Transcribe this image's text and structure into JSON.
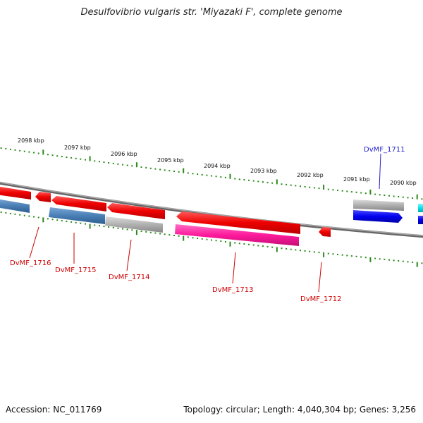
{
  "title": "Desulfovibrio vulgaris str. 'Miyazaki F', complete genome",
  "footer": {
    "accession": "Accession: NC_011769",
    "stats": "Topology: circular; Length: 4,040,304 bp; Genes: 3,256"
  },
  "scale_labels": [
    "2098 kbp",
    "2097 kbp",
    "2096 kbp",
    "2095 kbp",
    "2094 kbp",
    "2093 kbp",
    "2092 kbp",
    "2091 kbp",
    "2090 kbp"
  ],
  "genes": [
    {
      "id": "DvMF_1711",
      "color": "#1a1acc"
    },
    {
      "id": "DvMF_1712",
      "color": "#cc0000"
    },
    {
      "id": "DvMF_1713",
      "color": "#cc0000"
    },
    {
      "id": "DvMF_1714",
      "color": "#cc0000"
    },
    {
      "id": "DvMF_1715",
      "color": "#cc0000"
    },
    {
      "id": "DvMF_1716",
      "color": "#cc0000"
    }
  ],
  "colors": {
    "backbone": "#888888",
    "tick": "#2a8a1a",
    "cds_red": "#ee0000",
    "cds_blue": "#0000ee",
    "cds_cyan": "#00e5ee",
    "rna_pink": "#ff1a9c",
    "steel_blue": "#4a7fb5",
    "gray": "#b0b0b0"
  }
}
